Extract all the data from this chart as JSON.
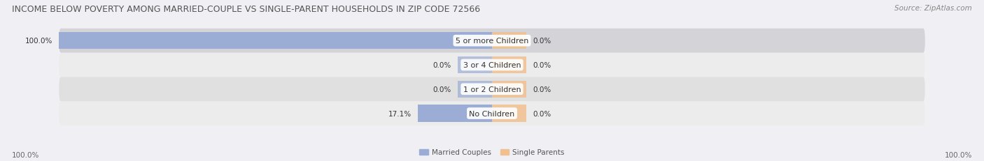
{
  "title": "INCOME BELOW POVERTY AMONG MARRIED-COUPLE VS SINGLE-PARENT HOUSEHOLDS IN ZIP CODE 72566",
  "source": "Source: ZipAtlas.com",
  "categories": [
    "No Children",
    "1 or 2 Children",
    "3 or 4 Children",
    "5 or more Children"
  ],
  "married_values": [
    17.1,
    0.0,
    0.0,
    100.0
  ],
  "single_values": [
    0.0,
    0.0,
    0.0,
    0.0
  ],
  "married_color": "#9badd4",
  "single_color": "#f0c090",
  "row_bg_colors": [
    "#ececec",
    "#e0e0e0",
    "#ececec",
    "#d4d4d8"
  ],
  "title_fontsize": 9.0,
  "source_fontsize": 7.5,
  "label_fontsize": 7.5,
  "category_fontsize": 8.0,
  "axis_label_left": "100.0%",
  "axis_label_right": "100.0%",
  "legend_labels": [
    "Married Couples",
    "Single Parents"
  ],
  "max_value": 100.0,
  "stub_size": 8.0,
  "bg_color": "#f0f0f4"
}
